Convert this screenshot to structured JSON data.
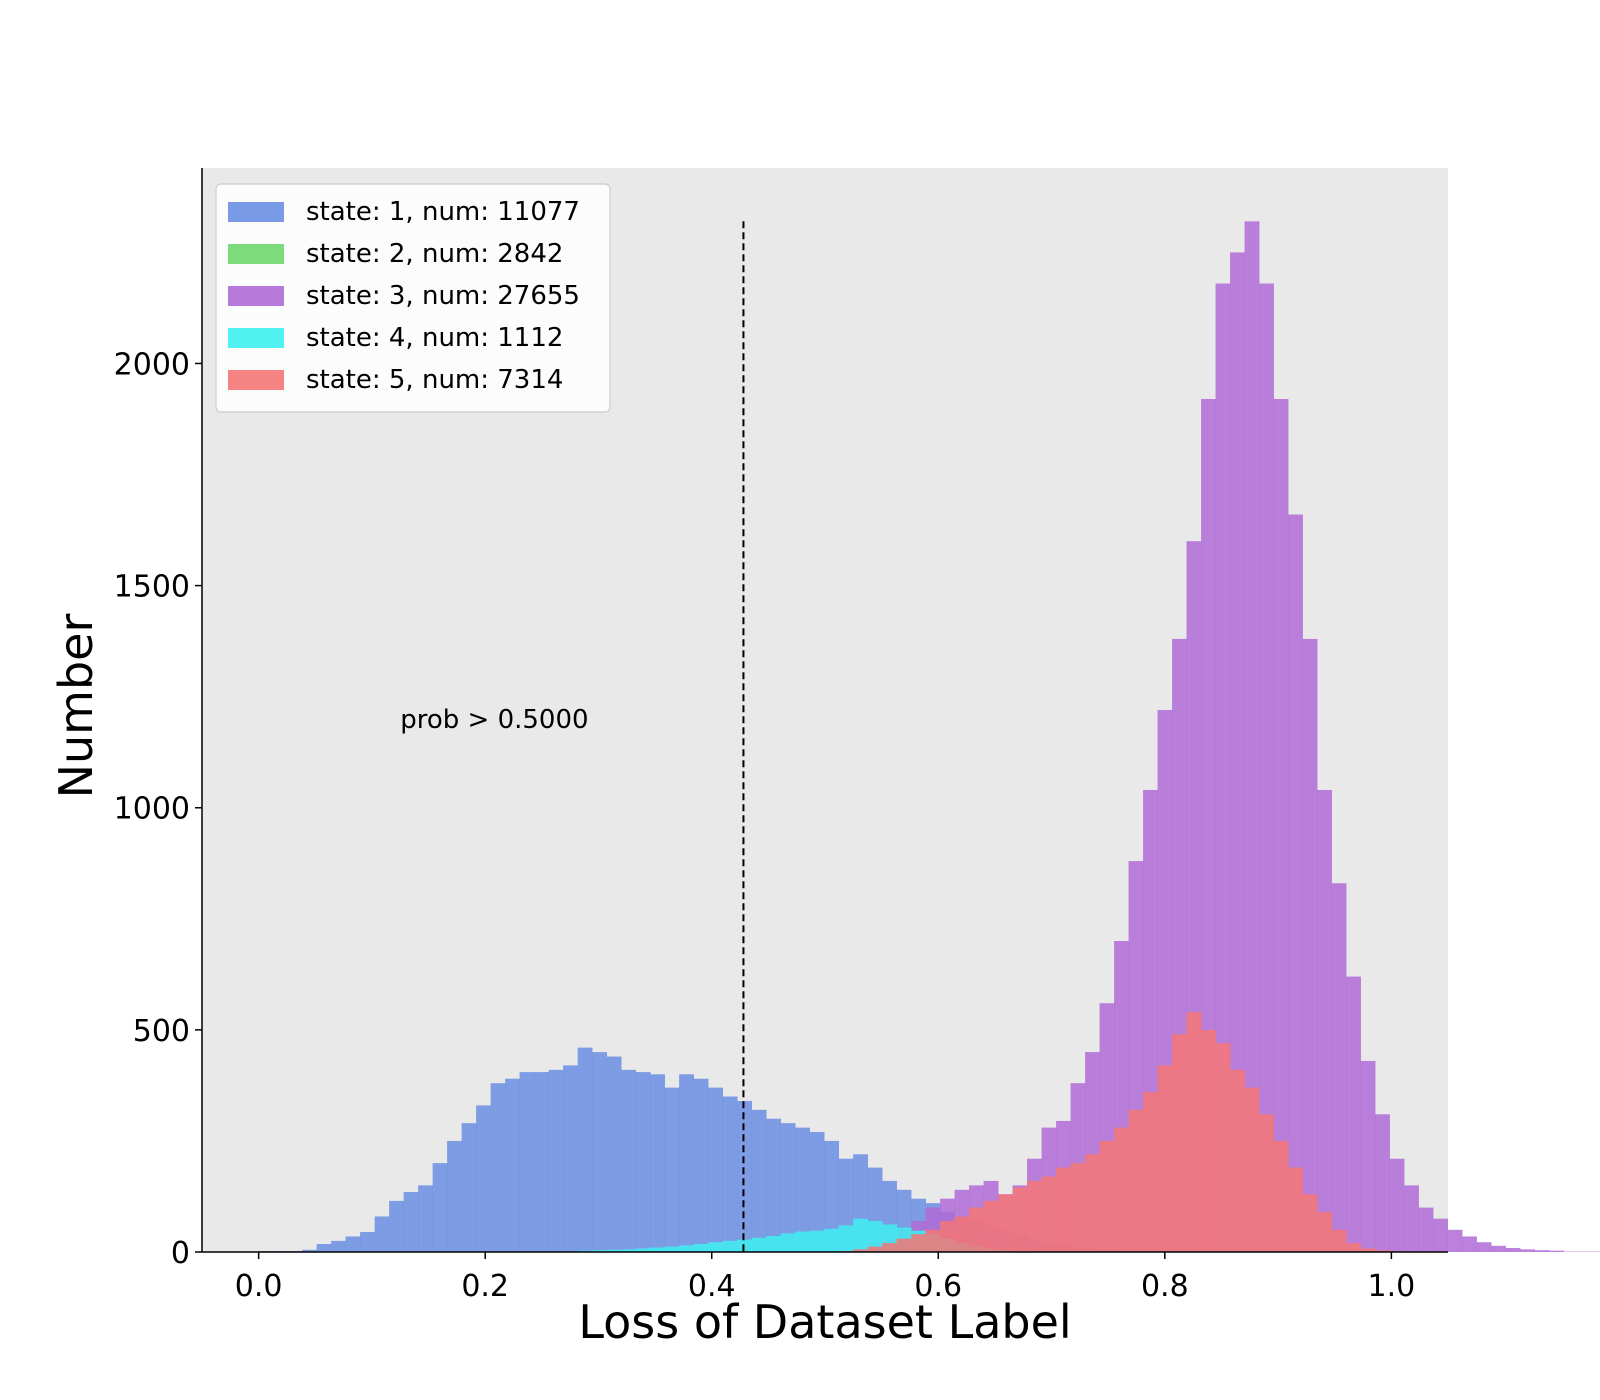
{
  "chart_data": {
    "type": "bar",
    "subtype": "overlapping-histogram",
    "xlabel": "Loss of Dataset Label",
    "ylabel": "Number",
    "xlim": [
      -0.05,
      1.05
    ],
    "ylim": [
      0,
      2440
    ],
    "xticks": [
      0.0,
      0.2,
      0.4,
      0.6,
      0.8,
      1.0
    ],
    "xtick_labels": [
      "0.0",
      "0.2",
      "0.4",
      "0.6",
      "0.8",
      "1.0"
    ],
    "yticks": [
      0,
      500,
      1000,
      1500,
      2000
    ],
    "ytick_labels": [
      "0",
      "500",
      "1000",
      "1500",
      "2000"
    ],
    "grid": false,
    "background": "#e9e9e9",
    "legend_position": "top-left",
    "bins": {
      "start": 0.0,
      "width": 0.0128
    },
    "threshold": {
      "x": 0.428,
      "label": "prob > 0.5000"
    },
    "series": [
      {
        "name": "state: 1, num: 11077",
        "color": "#6b8ee3",
        "counts": [
          2,
          2,
          2,
          5,
          18,
          25,
          35,
          45,
          80,
          115,
          135,
          150,
          200,
          250,
          290,
          330,
          380,
          390,
          405,
          405,
          410,
          420,
          460,
          450,
          440,
          410,
          405,
          400,
          370,
          400,
          390,
          370,
          350,
          340,
          320,
          300,
          290,
          280,
          270,
          250,
          210,
          220,
          190,
          160,
          140,
          120,
          110,
          90,
          80,
          70,
          60,
          50,
          40,
          30,
          20,
          15,
          10,
          8,
          6,
          4,
          3,
          2,
          1,
          1
        ]
      },
      {
        "name": "state: 2, num: 2842",
        "color": "#6ed86e",
        "counts": []
      },
      {
        "name": "state: 3, num: 27655",
        "color": "#b06bd6",
        "counts": [
          0,
          0,
          0,
          0,
          0,
          0,
          0,
          0,
          0,
          0,
          0,
          0,
          0,
          0,
          0,
          0,
          0,
          0,
          0,
          0,
          0,
          0,
          0,
          0,
          0,
          0,
          0,
          0,
          0,
          0,
          0,
          0,
          0,
          0,
          0,
          0,
          0,
          0,
          0,
          0,
          0,
          0,
          20,
          30,
          50,
          70,
          100,
          120,
          140,
          150,
          160,
          130,
          150,
          210,
          280,
          295,
          380,
          450,
          560,
          700,
          880,
          1040,
          1220,
          1380,
          1600,
          1920,
          2180,
          2250,
          2320,
          2180,
          1920,
          1660,
          1380,
          1040,
          830,
          620,
          430,
          310,
          210,
          150,
          100,
          75,
          50,
          35,
          22,
          14,
          9,
          6,
          4,
          3,
          1,
          1,
          1,
          0,
          1
        ]
      },
      {
        "name": "state: 4, num: 1112",
        "color": "#3ef0f0",
        "counts": [
          0,
          0,
          0,
          0,
          0,
          0,
          0,
          0,
          0,
          0,
          0,
          0,
          0,
          0,
          0,
          0,
          0,
          0,
          0,
          0,
          0,
          0,
          3,
          4,
          5,
          6,
          8,
          10,
          12,
          15,
          18,
          22,
          25,
          28,
          32,
          36,
          42,
          46,
          48,
          52,
          60,
          75,
          70,
          62,
          55,
          48,
          40,
          30,
          20,
          12,
          7,
          4,
          2,
          1
        ]
      },
      {
        "name": "state: 5, num: 7314",
        "color": "#f47575",
        "counts": [
          0,
          0,
          0,
          0,
          0,
          0,
          0,
          0,
          0,
          0,
          0,
          0,
          0,
          0,
          0,
          0,
          0,
          0,
          0,
          0,
          0,
          0,
          0,
          0,
          0,
          0,
          0,
          0,
          0,
          0,
          0,
          0,
          0,
          0,
          0,
          0,
          0,
          0,
          0,
          0,
          2,
          6,
          12,
          20,
          30,
          40,
          50,
          70,
          80,
          100,
          115,
          130,
          145,
          160,
          170,
          190,
          200,
          220,
          250,
          280,
          320,
          360,
          420,
          490,
          540,
          500,
          470,
          410,
          370,
          310,
          250,
          190,
          130,
          90,
          50,
          20,
          8,
          4,
          2,
          1
        ]
      }
    ]
  }
}
